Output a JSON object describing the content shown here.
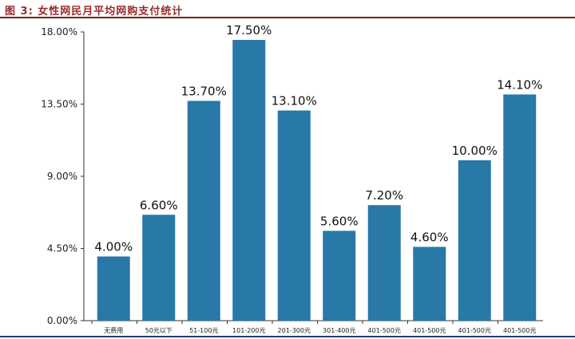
{
  "title": "图 3: 女性网民月平均网购支付统计",
  "colors": {
    "bar": "#2878a8",
    "title": "#9b2b2b",
    "axis": "#333333"
  },
  "chart_data": {
    "type": "bar",
    "title": "",
    "xlabel": "",
    "ylabel": "",
    "categories": [
      "无费用",
      "50元以下",
      "51-100元",
      "101-200元",
      "201-300元",
      "301-400元",
      "401-500元",
      "401-500元",
      "401-500元",
      "401-500元"
    ],
    "values": [
      4.0,
      6.6,
      13.7,
      17.5,
      13.1,
      5.6,
      7.2,
      4.6,
      10.0,
      14.1
    ],
    "value_labels": [
      "4.00%",
      "6.60%",
      "13.70%",
      "17.50%",
      "13.10%",
      "5.60%",
      "7.20%",
      "4.60%",
      "10.00%",
      "14.10%"
    ],
    "yticks": [
      0,
      4.5,
      9,
      13.5,
      18
    ],
    "ytick_labels": [
      "0.00%",
      "4.50%",
      "9.00%",
      "13.50%",
      "18.00%"
    ],
    "ylim": [
      0,
      18
    ],
    "grid": false,
    "legend": "none"
  }
}
